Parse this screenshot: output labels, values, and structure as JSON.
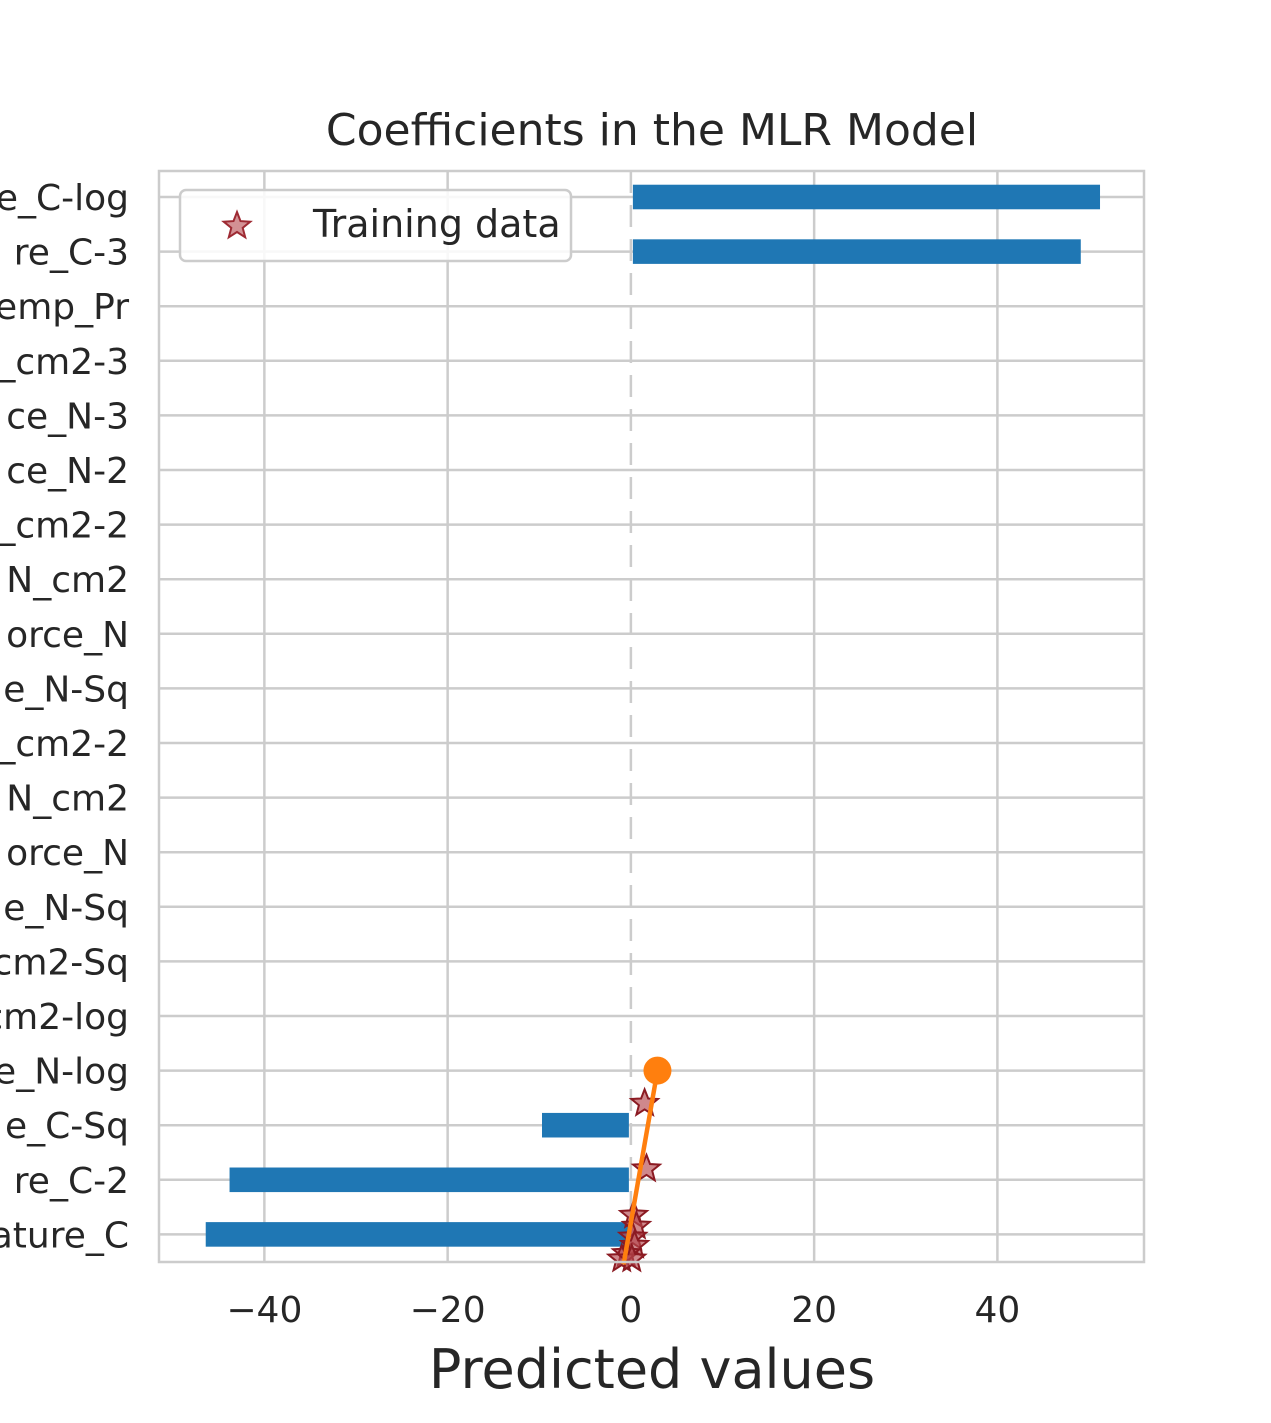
{
  "chart_data": {
    "type": "bar",
    "orientation": "horizontal",
    "title": "Coefficients in the MLR Model",
    "xlabel": "Predicted values",
    "ylabel": "",
    "xlim": [
      -51.5,
      56.0
    ],
    "xticks": [
      -40,
      -20,
      0,
      20,
      40
    ],
    "xtick_labels": [
      "−40",
      "−20",
      "0",
      "20",
      "40"
    ],
    "grid": true,
    "legend": {
      "placement": "top-left",
      "entries": [
        "Training data"
      ]
    },
    "categories": [
      "e_C-log",
      "re_C-3",
      "emp_Pr",
      "_cm2-3",
      "ce_N-3",
      "ce_N-2",
      "_cm2-2",
      "N_cm2",
      "orce_N",
      "e_N-Sq",
      "_cm2-2",
      "N_cm2",
      "orce_N",
      "e_N-Sq",
      "cm2-Sq",
      "cm2-log",
      "e_N-log",
      "e_C-Sq",
      "re_C-2",
      "ature_C"
    ],
    "values": [
      51.2,
      49.1,
      0,
      0,
      0,
      0,
      0,
      0,
      0,
      0,
      0,
      0,
      0,
      0,
      0,
      0,
      0,
      -9.7,
      -43.8,
      -46.4
    ],
    "bar_color": "#1f77b4",
    "reference_line_x": 0,
    "training_data": {
      "name": "Training data",
      "marker": "star",
      "color": "#b5484f",
      "points": [
        {
          "x": 1.5,
          "category": "e_N-log",
          "offset": 0.6
        },
        {
          "x": 1.7,
          "category": "re_C-2",
          "offset": -0.2
        },
        {
          "x": 0.3,
          "category": "ature_C",
          "offset": -0.35
        },
        {
          "x": 0.6,
          "category": "ature_C",
          "offset": -0.15
        },
        {
          "x": 0.2,
          "category": "ature_C",
          "offset": 0.05
        },
        {
          "x": 0.4,
          "category": "ature_C",
          "offset": 0.2
        },
        {
          "x": -0.5,
          "category": "ature_C",
          "offset": 0.35
        },
        {
          "x": -1.0,
          "category": "ature_C",
          "offset": 0.45
        },
        {
          "x": 0.1,
          "category": "ature_C",
          "offset": 0.45
        }
      ]
    },
    "fit_line": {
      "color": "#ff7f0e",
      "x_start": -0.8,
      "x_end": 2.9,
      "start": {
        "category": "ature_C",
        "offset": 0.55
      },
      "end": {
        "category": "e_N-log",
        "offset": 0.0
      },
      "end_marker": "circle"
    }
  }
}
